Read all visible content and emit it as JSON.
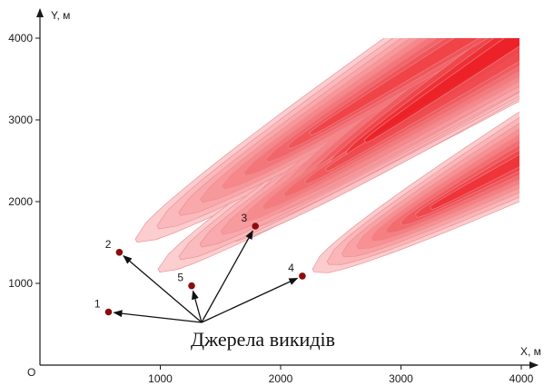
{
  "chart_data": {
    "type": "contour",
    "xlabel": "X, м",
    "ylabel": "Y, м",
    "origin_label": "O",
    "xlim": [
      0,
      4000
    ],
    "ylim": [
      0,
      4000
    ],
    "x_ticks": [
      {
        "value": 1000,
        "label": "1000"
      },
      {
        "value": 2000,
        "label": "2000"
      },
      {
        "value": 3000,
        "label": "3000"
      },
      {
        "value": 4000,
        "label": "4000"
      }
    ],
    "y_ticks": [
      {
        "value": 1000,
        "label": "1000"
      },
      {
        "value": 2000,
        "label": "2000"
      },
      {
        "value": 3000,
        "label": "3000"
      },
      {
        "value": 4000,
        "label": "4000"
      }
    ],
    "grid": false,
    "annotation": "Джерела викидів",
    "sources": [
      {
        "label": "1",
        "x": 570,
        "y": 650
      },
      {
        "label": "2",
        "x": 660,
        "y": 1380
      },
      {
        "label": "3",
        "x": 1790,
        "y": 1700
      },
      {
        "label": "4",
        "x": 2180,
        "y": 1090
      },
      {
        "label": "5",
        "x": 1260,
        "y": 970
      }
    ],
    "contour_levels": 9,
    "colors": {
      "axis": "#1a1a1a",
      "source_marker": "#8b0d0d",
      "contour_low": "#fde3e4",
      "contour_high": "#ec2127",
      "contour_edge": "#e98a8e",
      "arrow": "#111111"
    }
  }
}
